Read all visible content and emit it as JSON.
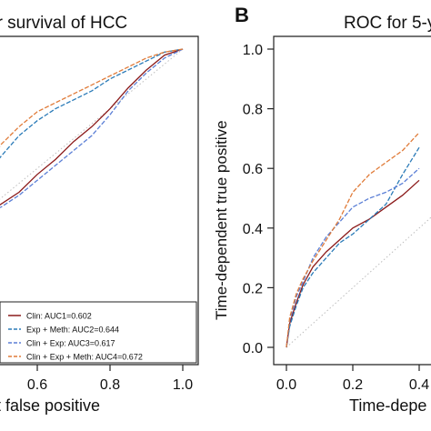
{
  "panels": {
    "left_title": "ar survival of HCC",
    "right_title": "ROC for 5-y",
    "right_letter": "B",
    "left_xlabel": "nt false positive",
    "right_xlabel": "Time-depe",
    "right_ylabel": "Time-dependent true positive"
  },
  "colors": {
    "clin": "#8b1a1a",
    "exp_meth": "#2b7bb8",
    "clin_exp": "#5b7fd6",
    "clin_exp_meth": "#e07b39",
    "diagonal": "#bdbdbd"
  },
  "chart_data": [
    {
      "type": "line",
      "panel": "left",
      "title": "ar survival of HCC",
      "xlabel": "nt false positive",
      "ylabel": "",
      "xlim": [
        0.0,
        1.0
      ],
      "ylim": [
        0.0,
        1.0
      ],
      "x_ticks": [
        "0.6",
        "0.8",
        "1.0"
      ],
      "x_tick_values": [
        0.6,
        0.8,
        1.0
      ],
      "legend_position": "bottom-right",
      "reference_line": "diagonal",
      "series": [
        {
          "name": "Clin: AUC1=0.602",
          "color": "#8b1a1a",
          "x": [
            0.46,
            0.5,
            0.55,
            0.6,
            0.65,
            0.7,
            0.75,
            0.8,
            0.85,
            0.9,
            0.95,
            1.0
          ],
          "y": [
            0.45,
            0.48,
            0.52,
            0.58,
            0.63,
            0.69,
            0.74,
            0.8,
            0.87,
            0.93,
            0.98,
            1.0
          ]
        },
        {
          "name": "Exp + Meth: AUC2=0.644",
          "color": "#2b7bb8",
          "x": [
            0.46,
            0.5,
            0.55,
            0.6,
            0.65,
            0.7,
            0.75,
            0.8,
            0.85,
            0.9,
            0.95,
            1.0
          ],
          "y": [
            0.58,
            0.64,
            0.71,
            0.76,
            0.8,
            0.83,
            0.86,
            0.9,
            0.93,
            0.96,
            0.99,
            1.0
          ]
        },
        {
          "name": "Clin + Exp: AUC3=0.617",
          "color": "#5b7fd6",
          "x": [
            0.46,
            0.5,
            0.55,
            0.6,
            0.65,
            0.7,
            0.75,
            0.8,
            0.85,
            0.9,
            0.95,
            1.0
          ],
          "y": [
            0.45,
            0.47,
            0.51,
            0.56,
            0.61,
            0.66,
            0.71,
            0.78,
            0.86,
            0.92,
            0.97,
            1.0
          ]
        },
        {
          "name": "Clin + Exp + Meth: AUC4=0.672",
          "color": "#e07b39",
          "x": [
            0.46,
            0.5,
            0.55,
            0.6,
            0.65,
            0.7,
            0.75,
            0.8,
            0.85,
            0.9,
            0.95,
            1.0
          ],
          "y": [
            0.61,
            0.68,
            0.74,
            0.79,
            0.82,
            0.85,
            0.88,
            0.91,
            0.94,
            0.97,
            0.99,
            1.0
          ]
        }
      ]
    },
    {
      "type": "line",
      "panel": "right",
      "title": "ROC for 5-y",
      "xlabel": "Time-depe",
      "ylabel": "Time-dependent true positive",
      "xlim": [
        0.0,
        0.4
      ],
      "ylim": [
        0.0,
        1.0
      ],
      "x_ticks": [
        "0.0",
        "0.2",
        "0.4"
      ],
      "x_tick_values": [
        0.0,
        0.2,
        0.4
      ],
      "y_ticks": [
        "0.0",
        "0.2",
        "0.4",
        "0.6",
        "0.8",
        "1.0"
      ],
      "y_tick_values": [
        0.0,
        0.2,
        0.4,
        0.6,
        0.8,
        1.0
      ],
      "reference_line": "diagonal",
      "series": [
        {
          "name": "Clin",
          "color": "#8b1a1a",
          "x": [
            0.0,
            0.01,
            0.03,
            0.05,
            0.08,
            0.12,
            0.16,
            0.2,
            0.25,
            0.3,
            0.35,
            0.4
          ],
          "y": [
            0.0,
            0.08,
            0.15,
            0.21,
            0.27,
            0.32,
            0.36,
            0.4,
            0.43,
            0.47,
            0.51,
            0.56
          ]
        },
        {
          "name": "Exp + Meth",
          "color": "#2b7bb8",
          "x": [
            0.0,
            0.01,
            0.03,
            0.05,
            0.08,
            0.12,
            0.16,
            0.2,
            0.25,
            0.3,
            0.35,
            0.4
          ],
          "y": [
            0.0,
            0.07,
            0.14,
            0.2,
            0.25,
            0.3,
            0.35,
            0.38,
            0.43,
            0.48,
            0.58,
            0.67
          ]
        },
        {
          "name": "Clin + Exp",
          "color": "#5b7fd6",
          "x": [
            0.0,
            0.01,
            0.03,
            0.05,
            0.08,
            0.12,
            0.16,
            0.2,
            0.25,
            0.3,
            0.35,
            0.4
          ],
          "y": [
            0.0,
            0.09,
            0.17,
            0.22,
            0.3,
            0.37,
            0.42,
            0.47,
            0.5,
            0.52,
            0.55,
            0.6
          ]
        },
        {
          "name": "Clin + Exp + Meth",
          "color": "#e07b39",
          "x": [
            0.0,
            0.01,
            0.03,
            0.05,
            0.08,
            0.12,
            0.16,
            0.2,
            0.25,
            0.3,
            0.35,
            0.4
          ],
          "y": [
            0.0,
            0.1,
            0.18,
            0.23,
            0.29,
            0.36,
            0.43,
            0.52,
            0.58,
            0.62,
            0.66,
            0.72
          ]
        }
      ]
    }
  ]
}
